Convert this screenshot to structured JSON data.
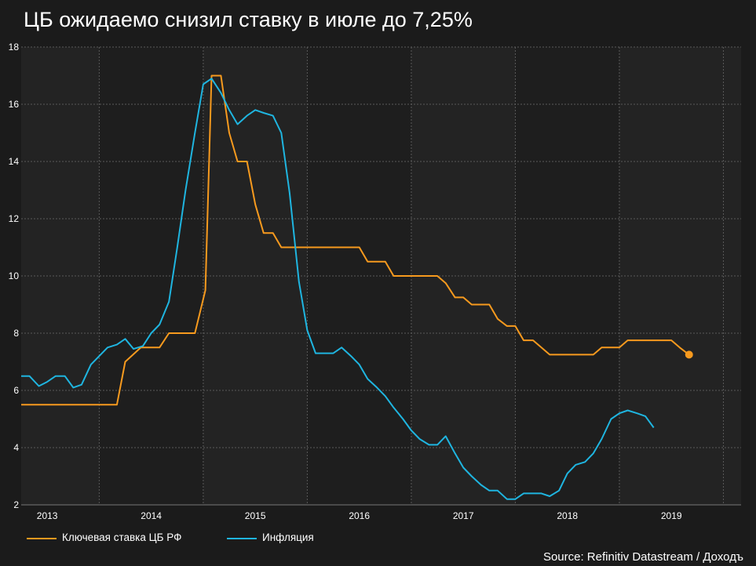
{
  "title": "ЦБ ожидаемо снизил ставку в июле до 7,25%",
  "source": "Source: Refinitiv Datastream / Доходъ",
  "colors": {
    "key_rate": "#f79a1e",
    "inflation": "#1fb5e0",
    "background": "#1b1b1b",
    "plot_background": "#232323",
    "grid": "#5a5a5a"
  },
  "chart_data": {
    "type": "line",
    "title": "ЦБ ожидаемо снизил ставку в июле до 7,25%",
    "xlabel": "",
    "ylabel": "",
    "ylim": [
      2,
      18
    ],
    "yticks": [
      2,
      4,
      6,
      8,
      10,
      12,
      14,
      16,
      18
    ],
    "xlim": [
      2012.75,
      2019.67
    ],
    "x_tick_labels": [
      "2013",
      "2014",
      "2015",
      "2016",
      "2017",
      "2018",
      "2019"
    ],
    "x_tick_values": [
      2013.0,
      2014.0,
      2015.0,
      2016.0,
      2017.0,
      2018.0,
      2019.0
    ],
    "grid": true,
    "legend_position": "bottom-left",
    "series": [
      {
        "name": "Ключевая ставка ЦБ РФ",
        "color": "#f79a1e",
        "points": [
          [
            2012.75,
            5.5
          ],
          [
            2013.67,
            5.5
          ],
          [
            2013.75,
            7.0
          ],
          [
            2013.9,
            7.5
          ],
          [
            2014.08,
            7.5
          ],
          [
            2014.17,
            8.0
          ],
          [
            2014.33,
            8.0
          ],
          [
            2014.42,
            8.0
          ],
          [
            2014.52,
            9.5
          ],
          [
            2014.58,
            17.0
          ],
          [
            2014.67,
            17.0
          ],
          [
            2014.75,
            15.0
          ],
          [
            2014.83,
            14.0
          ],
          [
            2014.92,
            14.0
          ],
          [
            2015.0,
            12.5
          ],
          [
            2015.08,
            11.5
          ],
          [
            2015.17,
            11.5
          ],
          [
            2015.25,
            11.0
          ],
          [
            2015.42,
            11.0
          ],
          [
            2015.58,
            11.0
          ],
          [
            2015.75,
            11.0
          ],
          [
            2015.92,
            11.0
          ],
          [
            2016.0,
            11.0
          ],
          [
            2016.08,
            10.5
          ],
          [
            2016.25,
            10.5
          ],
          [
            2016.33,
            10.0
          ],
          [
            2016.5,
            10.0
          ],
          [
            2016.67,
            10.0
          ],
          [
            2016.75,
            10.0
          ],
          [
            2016.83,
            9.75
          ],
          [
            2016.92,
            9.25
          ],
          [
            2017.0,
            9.25
          ],
          [
            2017.08,
            9.0
          ],
          [
            2017.25,
            9.0
          ],
          [
            2017.33,
            8.5
          ],
          [
            2017.42,
            8.25
          ],
          [
            2017.5,
            8.25
          ],
          [
            2017.58,
            7.75
          ],
          [
            2017.67,
            7.75
          ],
          [
            2017.83,
            7.25
          ],
          [
            2018.0,
            7.25
          ],
          [
            2018.17,
            7.25
          ],
          [
            2018.25,
            7.25
          ],
          [
            2018.33,
            7.5
          ],
          [
            2018.5,
            7.5
          ],
          [
            2018.58,
            7.75
          ],
          [
            2018.75,
            7.75
          ],
          [
            2018.92,
            7.75
          ],
          [
            2019.0,
            7.75
          ],
          [
            2019.08,
            7.5
          ],
          [
            2019.17,
            7.25
          ]
        ],
        "last_point_marker": true
      },
      {
        "name": "Инфляция",
        "color": "#1fb5e0",
        "points": [
          [
            2012.75,
            6.5
          ],
          [
            2012.83,
            6.5
          ],
          [
            2012.92,
            6.15
          ],
          [
            2013.0,
            6.3
          ],
          [
            2013.08,
            6.5
          ],
          [
            2013.17,
            6.5
          ],
          [
            2013.25,
            6.1
          ],
          [
            2013.33,
            6.2
          ],
          [
            2013.42,
            6.9
          ],
          [
            2013.5,
            7.2
          ],
          [
            2013.58,
            7.5
          ],
          [
            2013.67,
            7.6
          ],
          [
            2013.75,
            7.8
          ],
          [
            2013.83,
            7.45
          ],
          [
            2013.92,
            7.55
          ],
          [
            2014.0,
            8.0
          ],
          [
            2014.08,
            8.3
          ],
          [
            2014.17,
            9.1
          ],
          [
            2014.25,
            11.0
          ],
          [
            2014.33,
            13.0
          ],
          [
            2014.42,
            15.0
          ],
          [
            2014.5,
            16.7
          ],
          [
            2014.58,
            16.9
          ],
          [
            2014.67,
            16.4
          ],
          [
            2014.75,
            15.8
          ],
          [
            2014.83,
            15.3
          ],
          [
            2014.92,
            15.6
          ],
          [
            2015.0,
            15.8
          ],
          [
            2015.08,
            15.7
          ],
          [
            2015.17,
            15.6
          ],
          [
            2015.25,
            15.0
          ],
          [
            2015.33,
            12.9
          ],
          [
            2015.42,
            9.8
          ],
          [
            2015.5,
            8.1
          ],
          [
            2015.58,
            7.3
          ],
          [
            2015.67,
            7.3
          ],
          [
            2015.75,
            7.3
          ],
          [
            2015.83,
            7.5
          ],
          [
            2015.92,
            7.2
          ],
          [
            2016.0,
            6.9
          ],
          [
            2016.08,
            6.4
          ],
          [
            2016.17,
            6.1
          ],
          [
            2016.25,
            5.8
          ],
          [
            2016.33,
            5.4
          ],
          [
            2016.42,
            5.0
          ],
          [
            2016.5,
            4.6
          ],
          [
            2016.58,
            4.3
          ],
          [
            2016.67,
            4.1
          ],
          [
            2016.75,
            4.1
          ],
          [
            2016.83,
            4.4
          ],
          [
            2016.92,
            3.8
          ],
          [
            2017.0,
            3.3
          ],
          [
            2017.08,
            3.0
          ],
          [
            2017.17,
            2.7
          ],
          [
            2017.25,
            2.5
          ],
          [
            2017.33,
            2.5
          ],
          [
            2017.42,
            2.2
          ],
          [
            2017.5,
            2.2
          ],
          [
            2017.58,
            2.4
          ],
          [
            2017.67,
            2.4
          ],
          [
            2017.75,
            2.4
          ],
          [
            2017.83,
            2.3
          ],
          [
            2017.92,
            2.5
          ],
          [
            2018.0,
            3.1
          ],
          [
            2018.08,
            3.4
          ],
          [
            2018.17,
            3.5
          ],
          [
            2018.25,
            3.8
          ],
          [
            2018.33,
            4.3
          ],
          [
            2018.42,
            5.0
          ],
          [
            2018.5,
            5.2
          ],
          [
            2018.58,
            5.3
          ],
          [
            2018.67,
            5.2
          ],
          [
            2018.75,
            5.1
          ],
          [
            2018.83,
            4.7
          ]
        ]
      }
    ]
  }
}
